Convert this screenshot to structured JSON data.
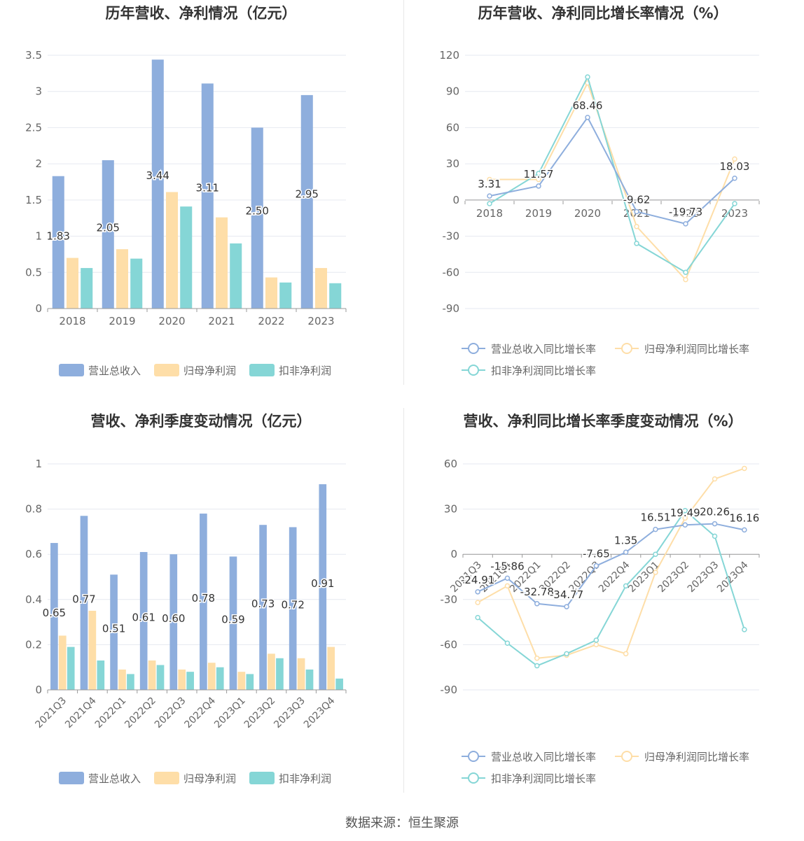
{
  "source": "数据来源：恒生聚源",
  "colors": {
    "revenue": "#8eaedd",
    "net_profit": "#fedea8",
    "deducted_profit": "#85d6d6",
    "axis": "#999999",
    "grid": "#e6e9f0",
    "text": "#666666"
  },
  "chart_data": [
    {
      "id": "annual_amounts",
      "type": "bar",
      "title": "历年营收、净利情况（亿元）",
      "categories": [
        "2018",
        "2019",
        "2020",
        "2021",
        "2022",
        "2023"
      ],
      "ylim": [
        0,
        3.5
      ],
      "yticks": [
        "0",
        "0.5",
        "1",
        "1.5",
        "2",
        "2.5",
        "3",
        "3.5"
      ],
      "series": [
        {
          "name": "营业总收入",
          "values": [
            1.83,
            2.05,
            3.44,
            3.11,
            2.5,
            2.95
          ],
          "labels": [
            "1.83",
            "2.05",
            "3.44",
            "3.11",
            "2.50",
            "2.95"
          ]
        },
        {
          "name": "归母净利润",
          "values": [
            0.7,
            0.82,
            1.61,
            1.26,
            0.43,
            0.56
          ]
        },
        {
          "name": "扣非净利润",
          "values": [
            0.56,
            0.69,
            1.41,
            0.9,
            0.36,
            0.35
          ]
        }
      ],
      "legend": "bottom"
    },
    {
      "id": "annual_growth",
      "type": "line",
      "title": "历年营收、净利同比增长率情况（%）",
      "categories": [
        "2018",
        "2019",
        "2020",
        "2021",
        "2022",
        "2023"
      ],
      "ylim": [
        -90,
        120
      ],
      "yticks": [
        "-90",
        "-60",
        "-30",
        "0",
        "30",
        "60",
        "90",
        "120"
      ],
      "series": [
        {
          "name": "营业总收入同比增长率",
          "values": [
            3.31,
            11.57,
            68.46,
            -9.62,
            -19.73,
            18.03
          ],
          "labels": [
            "3.31",
            "11.57",
            "68.46",
            "-9.62",
            "-19.73",
            "18.03"
          ]
        },
        {
          "name": "归母净利润同比增长率",
          "values": [
            17,
            17,
            97,
            -22,
            -66,
            34
          ]
        },
        {
          "name": "扣非净利润同比增长率",
          "values": [
            -3,
            22,
            102,
            -36,
            -60,
            -3
          ]
        }
      ],
      "legend": "bottom"
    },
    {
      "id": "quarterly_amounts",
      "type": "bar",
      "title": "营收、净利季度变动情况（亿元）",
      "categories": [
        "2021Q3",
        "2021Q4",
        "2022Q1",
        "2022Q2",
        "2022Q3",
        "2022Q4",
        "2023Q1",
        "2023Q2",
        "2023Q3",
        "2023Q4"
      ],
      "ylim": [
        0,
        1
      ],
      "yticks": [
        "0",
        "0.2",
        "0.4",
        "0.6",
        "0.8",
        "1"
      ],
      "series": [
        {
          "name": "营业总收入",
          "values": [
            0.65,
            0.77,
            0.51,
            0.61,
            0.6,
            0.78,
            0.59,
            0.73,
            0.72,
            0.91
          ],
          "labels": [
            "0.65",
            "0.77",
            "0.51",
            "0.61",
            "0.60",
            "0.78",
            "0.59",
            "0.73",
            "0.72",
            "0.91"
          ]
        },
        {
          "name": "归母净利润",
          "values": [
            0.24,
            0.35,
            0.09,
            0.13,
            0.09,
            0.12,
            0.08,
            0.16,
            0.14,
            0.19
          ]
        },
        {
          "name": "扣非净利润",
          "values": [
            0.19,
            0.13,
            0.07,
            0.11,
            0.08,
            0.1,
            0.07,
            0.14,
            0.09,
            0.05
          ]
        }
      ],
      "legend": "bottom"
    },
    {
      "id": "quarterly_growth",
      "type": "line",
      "title": "营收、净利同比增长率季度变动情况（%）",
      "categories": [
        "2021Q3",
        "2021Q4",
        "2022Q1",
        "2022Q2",
        "2022Q3",
        "2022Q4",
        "2023Q1",
        "2023Q2",
        "2023Q3",
        "2023Q4"
      ],
      "ylim": [
        -90,
        60
      ],
      "yticks": [
        "-90",
        "-60",
        "-30",
        "0",
        "30",
        "60"
      ],
      "series": [
        {
          "name": "营业总收入同比增长率",
          "values": [
            -24.91,
            -15.86,
            -32.78,
            -34.77,
            -7.65,
            1.35,
            16.51,
            19.49,
            20.26,
            16.16
          ],
          "labels": [
            "-24.91",
            "-15.86",
            "-32.78",
            "-34.77",
            "-7.65",
            "1.35",
            "16.51",
            "19.49",
            "20.26",
            "16.16"
          ]
        },
        {
          "name": "归母净利润同比增长率",
          "values": [
            -32,
            -21,
            -69,
            -67,
            -60,
            -66,
            -12,
            24,
            50,
            57
          ]
        },
        {
          "name": "扣非净利润同比增长率",
          "values": [
            -42,
            -59,
            -74,
            -66,
            -57,
            -21,
            0,
            29,
            12,
            -50
          ]
        }
      ],
      "legend": "bottom"
    }
  ]
}
